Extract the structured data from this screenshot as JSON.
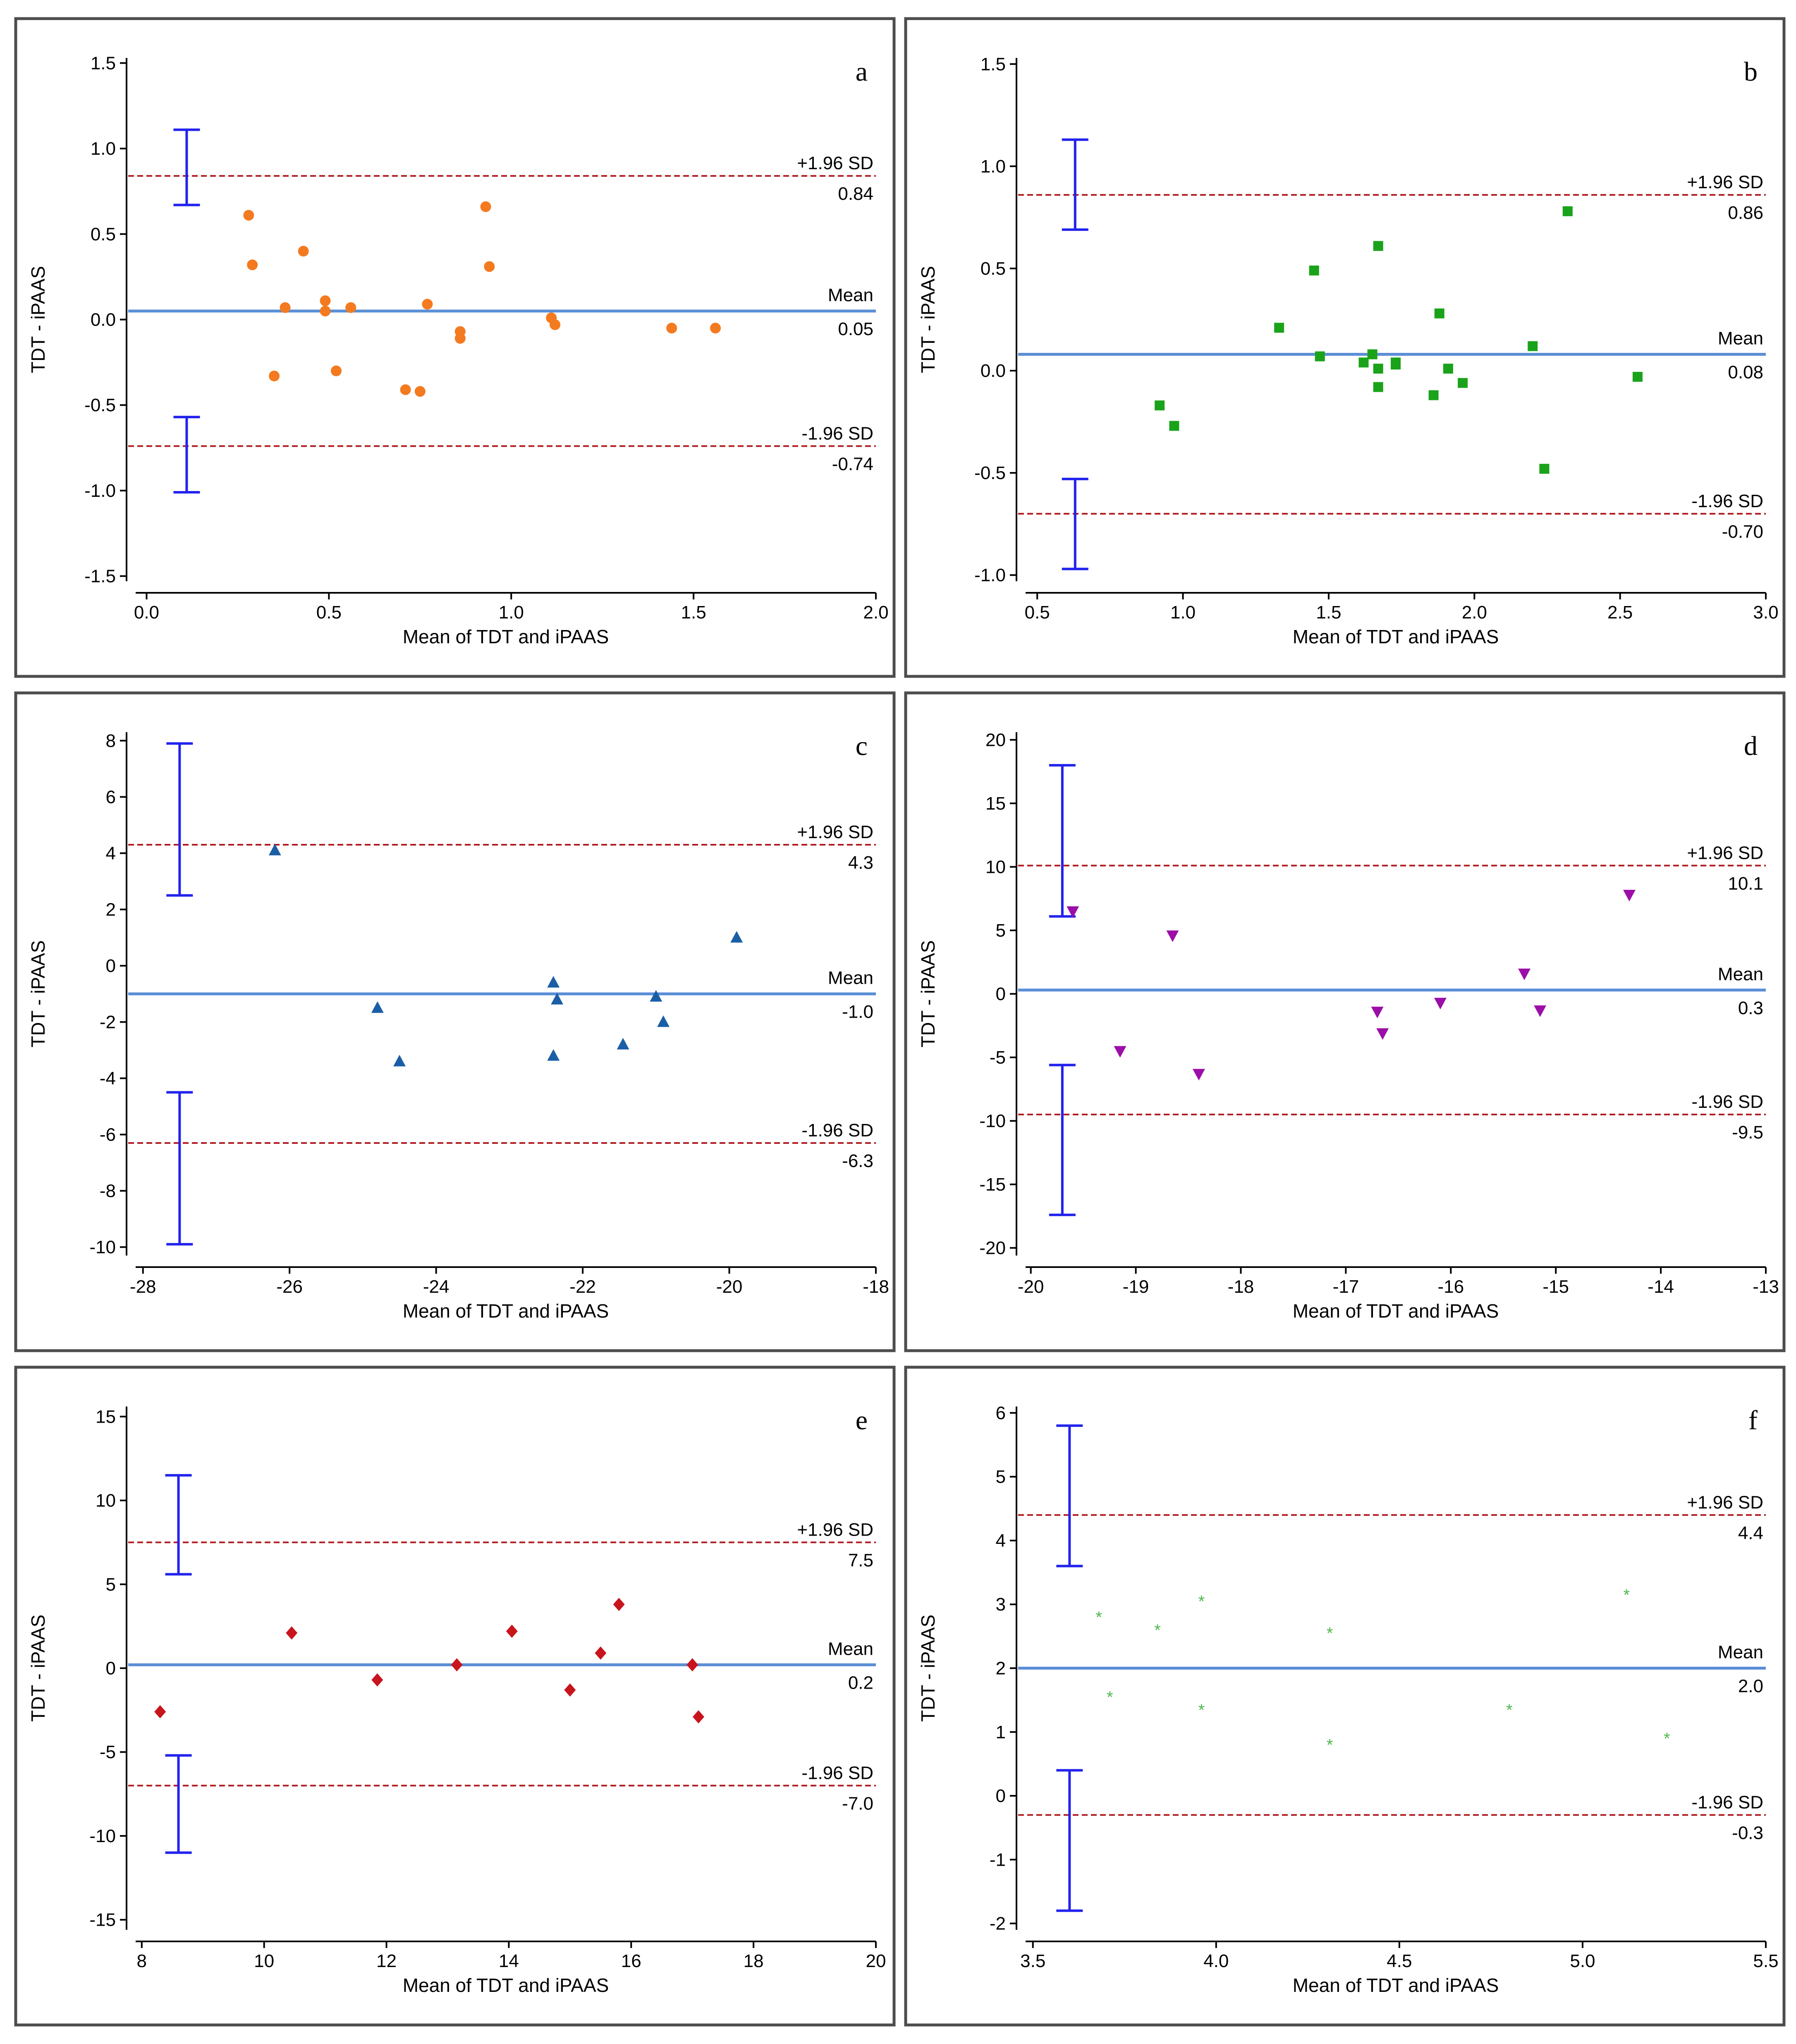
{
  "axis_labels": {
    "x": "Mean of TDT and iPAAS",
    "y": "TDT - iPAAS"
  },
  "line_labels": {
    "upper": "+1.96 SD",
    "mean": "Mean",
    "lower": "-1.96 SD"
  },
  "chart_data": [
    {
      "panel": "a",
      "type": "scatter",
      "marker": "circle",
      "color": "#f47a20",
      "xlabel": "Mean of TDT and iPAAS",
      "ylabel": "TDT - iPAAS",
      "xlim": [
        -0.03,
        2.0
      ],
      "ylim": [
        -1.53,
        1.53
      ],
      "xticks": [
        0,
        0.5,
        1,
        1.5,
        2
      ],
      "xtick_labels": [
        "0.0",
        "0.5",
        "1.0",
        "1.5",
        "2.0"
      ],
      "yticks": [
        -1.5,
        -1,
        -0.5,
        0,
        0.5,
        1,
        1.5
      ],
      "ytick_labels": [
        "-1.5",
        "-1.0",
        "-0.5",
        "0.0",
        "0.5",
        "1.0",
        "1.5"
      ],
      "mean": 0.05,
      "upper": 0.84,
      "lower": -0.74,
      "mean_label": "0.05",
      "upper_label": "0.84",
      "lower_label": "-0.74",
      "ci_x": 0.11,
      "upper_ci": [
        0.67,
        1.11
      ],
      "lower_ci": [
        -1.01,
        -0.57
      ],
      "points": [
        [
          0.28,
          0.61
        ],
        [
          0.29,
          0.32
        ],
        [
          0.35,
          -0.33
        ],
        [
          0.38,
          0.07
        ],
        [
          0.43,
          0.4
        ],
        [
          0.49,
          0.11
        ],
        [
          0.49,
          0.05
        ],
        [
          0.52,
          -0.3
        ],
        [
          0.56,
          0.07
        ],
        [
          0.71,
          -0.41
        ],
        [
          0.75,
          -0.42
        ],
        [
          0.77,
          0.09
        ],
        [
          0.86,
          -0.07
        ],
        [
          0.86,
          -0.11
        ],
        [
          0.93,
          0.66
        ],
        [
          0.94,
          0.31
        ],
        [
          1.11,
          0.01
        ],
        [
          1.12,
          -0.03
        ],
        [
          1.44,
          -0.05
        ],
        [
          1.56,
          -0.05
        ]
      ]
    },
    {
      "panel": "b",
      "type": "scatter",
      "marker": "square",
      "color": "#1aa31a",
      "xlabel": "Mean of TDT and iPAAS",
      "ylabel": "TDT - iPAAS",
      "xlim": [
        0.46,
        3.0
      ],
      "ylim": [
        -1.03,
        1.53
      ],
      "xticks": [
        0.5,
        1,
        1.5,
        2,
        2.5,
        3
      ],
      "xtick_labels": [
        "0.5",
        "1.0",
        "1.5",
        "2.0",
        "2.5",
        "3.0"
      ],
      "yticks": [
        -1,
        -0.5,
        0,
        0.5,
        1,
        1.5
      ],
      "ytick_labels": [
        "-1.0",
        "-0.5",
        "0.0",
        "0.5",
        "1.0",
        "1.5"
      ],
      "mean": 0.08,
      "upper": 0.86,
      "lower": -0.7,
      "mean_label": "0.08",
      "upper_label": "0.86",
      "lower_label": "-0.70",
      "ci_x": 0.63,
      "upper_ci": [
        0.69,
        1.13
      ],
      "lower_ci": [
        -0.97,
        -0.53
      ],
      "points": [
        [
          0.92,
          -0.17
        ],
        [
          0.97,
          -0.27
        ],
        [
          1.33,
          0.21
        ],
        [
          1.45,
          0.49
        ],
        [
          1.47,
          0.07
        ],
        [
          1.62,
          0.04
        ],
        [
          1.65,
          0.08
        ],
        [
          1.67,
          0.61
        ],
        [
          1.67,
          -0.08
        ],
        [
          1.67,
          0.01
        ],
        [
          1.73,
          0.04
        ],
        [
          1.73,
          0.03
        ],
        [
          1.86,
          -0.12
        ],
        [
          1.88,
          0.28
        ],
        [
          1.91,
          0.01
        ],
        [
          1.96,
          -0.06
        ],
        [
          2.2,
          0.12
        ],
        [
          2.24,
          -0.48
        ],
        [
          2.32,
          0.78
        ],
        [
          2.56,
          -0.03
        ]
      ]
    },
    {
      "panel": "c",
      "type": "scatter",
      "marker": "triangle-up",
      "color": "#1a5ea6",
      "xlabel": "Mean of TDT and iPAAS",
      "ylabel": "TDT - iPAAS",
      "xlim": [
        -28.1,
        -18
      ],
      "ylim": [
        -10.3,
        8.3
      ],
      "xticks": [
        -28,
        -26,
        -24,
        -22,
        -20,
        -18
      ],
      "xtick_labels": [
        "-28",
        "-26",
        "-24",
        "-22",
        "-20",
        "-18"
      ],
      "yticks": [
        -10,
        -8,
        -6,
        -4,
        -2,
        0,
        2,
        4,
        6,
        8
      ],
      "ytick_labels": [
        "-10",
        "-8",
        "-6",
        "-4",
        "-2",
        "0",
        "2",
        "4",
        "6",
        "8"
      ],
      "mean": -1.0,
      "upper": 4.3,
      "lower": -6.3,
      "mean_label": "-1.0",
      "upper_label": "4.3",
      "lower_label": "-6.3",
      "ci_x": -27.5,
      "upper_ci": [
        2.5,
        7.9
      ],
      "lower_ci": [
        -9.9,
        -4.5
      ],
      "points": [
        [
          -26.2,
          4.1
        ],
        [
          -24.8,
          -1.5
        ],
        [
          -24.5,
          -3.4
        ],
        [
          -22.4,
          -0.6
        ],
        [
          -22.35,
          -1.2
        ],
        [
          -22.4,
          -3.2
        ],
        [
          -21.45,
          -2.8
        ],
        [
          -21.0,
          -1.1
        ],
        [
          -20.9,
          -2.0
        ],
        [
          -19.9,
          1.0
        ]
      ]
    },
    {
      "panel": "d",
      "type": "scatter",
      "marker": "triangle-down",
      "color": "#9c0ea8",
      "xlabel": "Mean of TDT and iPAAS",
      "ylabel": "TDT - iPAAS",
      "xlim": [
        -20.05,
        -13
      ],
      "ylim": [
        -20.6,
        20.6
      ],
      "xticks": [
        -20,
        -19,
        -18,
        -17,
        -16,
        -15,
        -14,
        -13
      ],
      "xtick_labels": [
        "-20",
        "-19",
        "-18",
        "-17",
        "-16",
        "-15",
        "-14",
        "-13"
      ],
      "yticks": [
        -20,
        -15,
        -10,
        -5,
        0,
        5,
        10,
        15,
        20
      ],
      "ytick_labels": [
        "-20",
        "-15",
        "-10",
        "-5",
        "0",
        "5",
        "10",
        "15",
        "20"
      ],
      "mean": 0.3,
      "upper": 10.1,
      "lower": -9.5,
      "mean_label": "0.3",
      "upper_label": "10.1",
      "lower_label": "-9.5",
      "ci_x": -19.7,
      "upper_ci": [
        6.1,
        18.0
      ],
      "lower_ci": [
        -17.4,
        -5.6
      ],
      "points": [
        [
          -19.6,
          6.5
        ],
        [
          -19.15,
          -4.5
        ],
        [
          -18.65,
          4.6
        ],
        [
          -18.4,
          -6.3
        ],
        [
          -16.7,
          -1.4
        ],
        [
          -16.65,
          -3.1
        ],
        [
          -16.1,
          -0.7
        ],
        [
          -15.3,
          1.6
        ],
        [
          -15.15,
          -1.3
        ],
        [
          -14.3,
          7.8
        ]
      ]
    },
    {
      "panel": "e",
      "type": "scatter",
      "marker": "diamond",
      "color": "#c8141c",
      "xlabel": "Mean of TDT and iPAAS",
      "ylabel": "TDT - iPAAS",
      "xlim": [
        7.9,
        20
      ],
      "ylim": [
        -15.6,
        15.6
      ],
      "xticks": [
        8,
        10,
        12,
        14,
        16,
        18,
        20
      ],
      "xtick_labels": [
        "8",
        "10",
        "12",
        "14",
        "16",
        "18",
        "20"
      ],
      "yticks": [
        -15,
        -10,
        -5,
        0,
        5,
        10,
        15
      ],
      "ytick_labels": [
        "-15",
        "-10",
        "-5",
        "0",
        "5",
        "10",
        "15"
      ],
      "mean": 0.2,
      "upper": 7.5,
      "lower": -7.0,
      "mean_label": "0.2",
      "upper_label": "7.5",
      "lower_label": "-7.0",
      "ci_x": 8.6,
      "upper_ci": [
        5.6,
        11.5
      ],
      "lower_ci": [
        -11.0,
        -5.2
      ],
      "points": [
        [
          8.3,
          -2.6
        ],
        [
          10.45,
          2.1
        ],
        [
          11.85,
          -0.7
        ],
        [
          13.15,
          0.2
        ],
        [
          14.05,
          2.2
        ],
        [
          15.0,
          -1.3
        ],
        [
          15.5,
          0.9
        ],
        [
          15.8,
          3.8
        ],
        [
          17.0,
          0.2
        ],
        [
          17.1,
          -2.9
        ]
      ]
    },
    {
      "panel": "f",
      "type": "scatter",
      "marker": "star",
      "color": "#4db84d",
      "xlabel": "Mean of TDT and iPAAS",
      "ylabel": "TDT - iPAAS",
      "xlim": [
        3.48,
        5.5
      ],
      "ylim": [
        -2.1,
        6.1
      ],
      "xticks": [
        3.5,
        4,
        4.5,
        5,
        5.5
      ],
      "xtick_labels": [
        "3.5",
        "4.0",
        "4.5",
        "5.0",
        "5.5"
      ],
      "yticks": [
        -2,
        -1,
        0,
        1,
        2,
        3,
        4,
        5,
        6
      ],
      "ytick_labels": [
        "-2",
        "-1",
        "0",
        "1",
        "2",
        "3",
        "4",
        "5",
        "6"
      ],
      "mean": 2.0,
      "upper": 4.4,
      "lower": -0.3,
      "mean_label": "2.0",
      "upper_label": "4.4",
      "lower_label": "-0.3",
      "ci_x": 3.6,
      "upper_ci": [
        3.6,
        5.8
      ],
      "lower_ci": [
        -1.8,
        0.4
      ],
      "points": [
        [
          3.68,
          2.8
        ],
        [
          3.71,
          1.55
        ],
        [
          3.84,
          2.6
        ],
        [
          3.96,
          3.05
        ],
        [
          3.96,
          1.35
        ],
        [
          4.31,
          2.55
        ],
        [
          4.31,
          0.8
        ],
        [
          4.8,
          1.35
        ],
        [
          5.12,
          3.15
        ],
        [
          5.23,
          0.9
        ]
      ]
    }
  ]
}
